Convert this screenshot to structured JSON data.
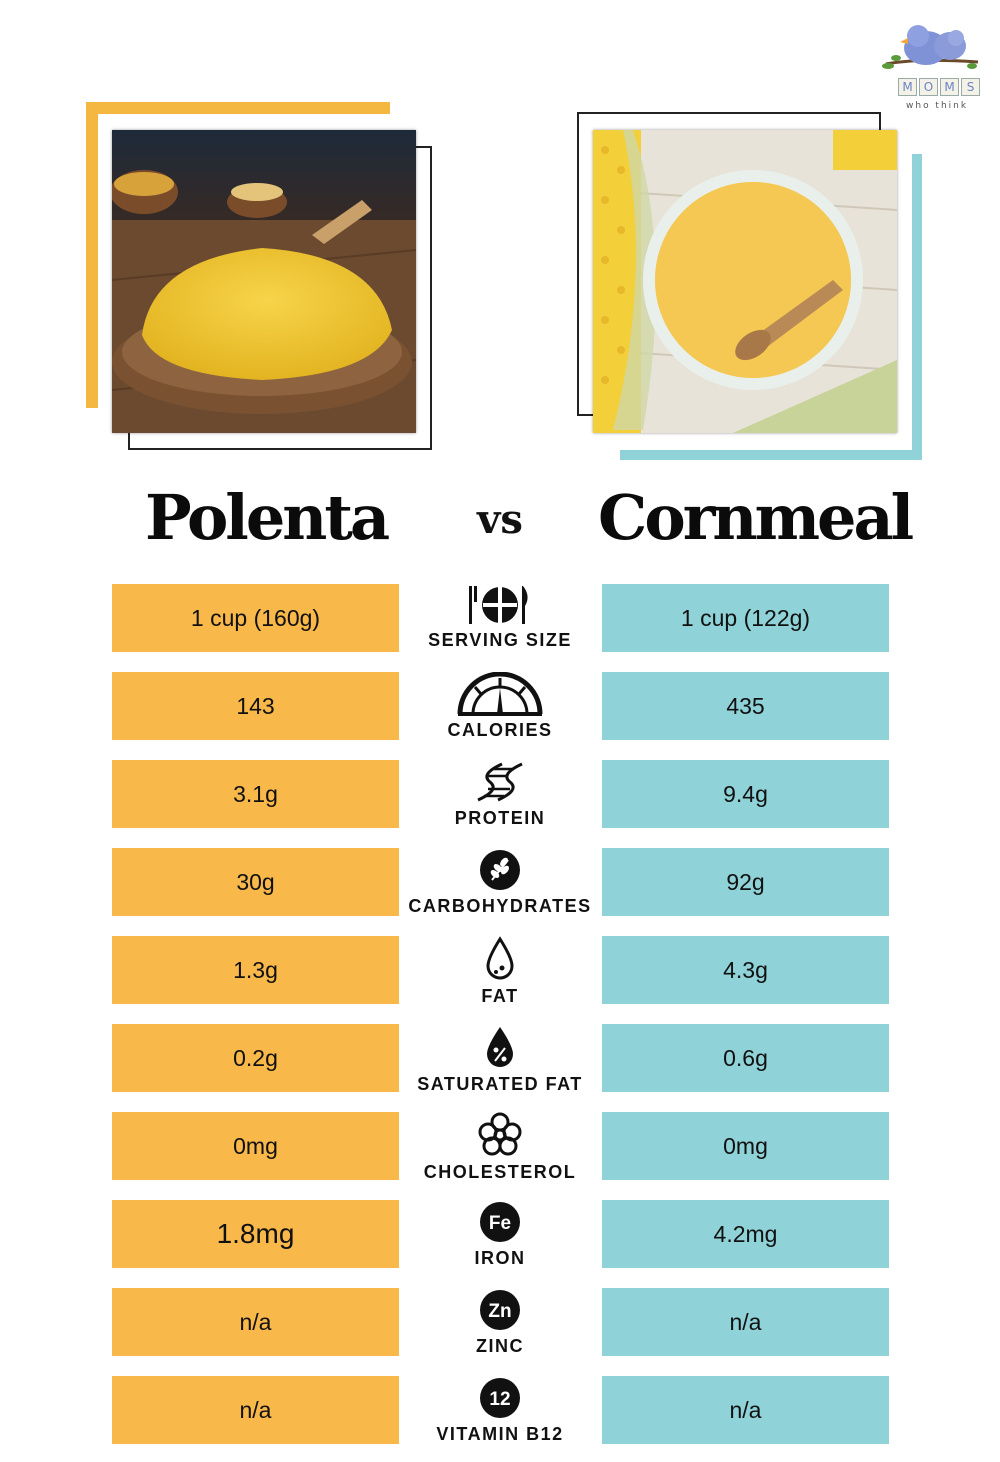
{
  "logo": {
    "letters": [
      "M",
      "O",
      "M",
      "S"
    ],
    "tagline": "who think"
  },
  "left_food": {
    "name": "Polenta",
    "image": "polenta-photo"
  },
  "right_food": {
    "name": "Cornmeal",
    "image": "cornmeal-photo"
  },
  "vs_label": "vs",
  "colors": {
    "left_accent": "#f8b84a",
    "right_accent": "#8fd3d8"
  },
  "rows": [
    {
      "label": "SERVING SIZE",
      "icon": "utensils-plate-icon",
      "left": "1 cup (160g)",
      "right": "1 cup (122g)"
    },
    {
      "label": "CALORIES",
      "icon": "gauge-icon",
      "left": "143",
      "right": "435"
    },
    {
      "label": "PROTEIN",
      "icon": "dna-icon",
      "left": "3.1g",
      "right": "9.4g"
    },
    {
      "label": "CARBOHYDRATES",
      "icon": "wheat-icon",
      "left": "30g",
      "right": "92g"
    },
    {
      "label": "FAT",
      "icon": "droplet-icon",
      "left": "1.3g",
      "right": "4.3g"
    },
    {
      "label": "SATURATED FAT",
      "icon": "percent-drop-icon",
      "left": "0.2g",
      "right": "0.6g"
    },
    {
      "label": "CHOLESTEROL",
      "icon": "molecule-icon",
      "left": "0mg",
      "right": "0mg"
    },
    {
      "label": "IRON",
      "icon": "fe-icon",
      "icon_text": "Fe",
      "left": "1.8mg",
      "right": "4.2mg"
    },
    {
      "label": "ZINC",
      "icon": "zn-icon",
      "icon_text": "Zn",
      "left": "n/a",
      "right": "n/a"
    },
    {
      "label": "VITAMIN B12",
      "icon": "b12-icon",
      "icon_text": "12",
      "left": "n/a",
      "right": "n/a"
    }
  ]
}
